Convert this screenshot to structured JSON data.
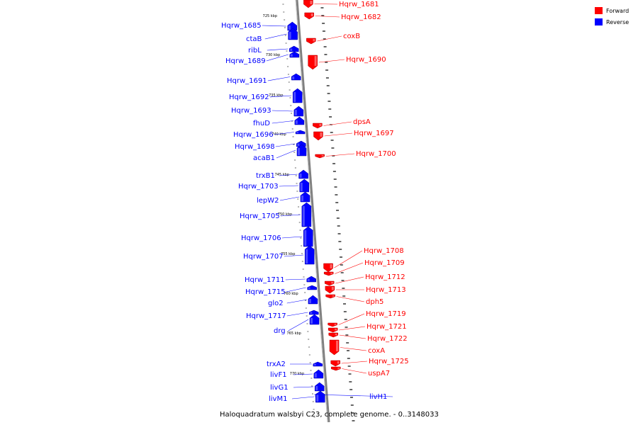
{
  "legend": [
    {
      "label": "Forward",
      "color": "#ff0000"
    },
    {
      "label": "Reverse",
      "color": "#0000ff"
    }
  ],
  "caption": "Haloquadratum walsbyi C23, complete genome. - 0..3148033",
  "colors": {
    "forward": "#ff0000",
    "reverse": "#0000ff",
    "axis": "#808080",
    "leader_forward": "#ff0000",
    "leader_reverse": "#0000ff"
  },
  "ticks": [
    "725 kbp",
    "730 kbp",
    "735 kbp",
    "740 kbp",
    "745 kbp",
    "750 kbp",
    "755 kbp",
    "760 kbp",
    "765 kbp",
    "770 kbp"
  ],
  "genes": [
    {
      "name": "Hqrw_1681",
      "strand": "forward"
    },
    {
      "name": "Hqrw_1682",
      "strand": "forward"
    },
    {
      "name": "Hqrw_1685",
      "strand": "reverse"
    },
    {
      "name": "ctaB",
      "strand": "reverse"
    },
    {
      "name": "coxB",
      "strand": "forward"
    },
    {
      "name": "ribL",
      "strand": "reverse"
    },
    {
      "name": "Hqrw_1689",
      "strand": "reverse"
    },
    {
      "name": "Hqrw_1690",
      "strand": "forward"
    },
    {
      "name": "Hqrw_1691",
      "strand": "reverse"
    },
    {
      "name": "Hqrw_1692",
      "strand": "reverse"
    },
    {
      "name": "Hqrw_1693",
      "strand": "reverse"
    },
    {
      "name": "dpsA",
      "strand": "forward"
    },
    {
      "name": "fhuD",
      "strand": "reverse"
    },
    {
      "name": "Hqrw_1697",
      "strand": "forward"
    },
    {
      "name": "Hqrw_1696",
      "strand": "reverse"
    },
    {
      "name": "Hqrw_1698",
      "strand": "reverse"
    },
    {
      "name": "Hqrw_1700",
      "strand": "forward"
    },
    {
      "name": "acaB1",
      "strand": "reverse"
    },
    {
      "name": "trxB1",
      "strand": "reverse"
    },
    {
      "name": "Hqrw_1703",
      "strand": "reverse"
    },
    {
      "name": "lepW2",
      "strand": "reverse"
    },
    {
      "name": "Hqrw_1705",
      "strand": "reverse"
    },
    {
      "name": "Hqrw_1706",
      "strand": "reverse"
    },
    {
      "name": "Hqrw_1708",
      "strand": "forward"
    },
    {
      "name": "Hqrw_1707",
      "strand": "reverse"
    },
    {
      "name": "Hqrw_1709",
      "strand": "forward"
    },
    {
      "name": "Hqrw_1712",
      "strand": "forward"
    },
    {
      "name": "Hqrw_1711",
      "strand": "reverse"
    },
    {
      "name": "Hqrw_1713",
      "strand": "forward"
    },
    {
      "name": "Hqrw_1715",
      "strand": "reverse"
    },
    {
      "name": "dph5",
      "strand": "forward"
    },
    {
      "name": "glo2",
      "strand": "reverse"
    },
    {
      "name": "Hqrw_1719",
      "strand": "forward"
    },
    {
      "name": "Hqrw_1717",
      "strand": "reverse"
    },
    {
      "name": "Hqrw_1721",
      "strand": "forward"
    },
    {
      "name": "drg",
      "strand": "reverse"
    },
    {
      "name": "Hqrw_1722",
      "strand": "forward"
    },
    {
      "name": "coxA",
      "strand": "forward"
    },
    {
      "name": "trxA2",
      "strand": "reverse"
    },
    {
      "name": "Hqrw_1725",
      "strand": "forward"
    },
    {
      "name": "uspA7",
      "strand": "forward"
    },
    {
      "name": "livF1",
      "strand": "reverse"
    },
    {
      "name": "livG1",
      "strand": "reverse"
    },
    {
      "name": "livH1",
      "strand": "reverse"
    },
    {
      "name": "livM1",
      "strand": "reverse"
    }
  ]
}
